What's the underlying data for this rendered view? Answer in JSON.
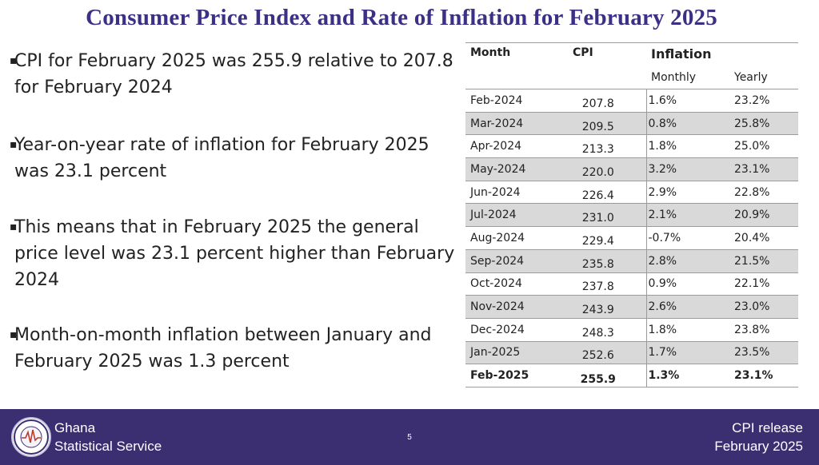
{
  "title": "Consumer Price Index and Rate of Inflation for February 2025",
  "bullets": [
    "CPI for February 2025 was 255.9 relative to 207.8 for February 2024",
    "Year-on-year rate of inflation for February 2025 was 23.1 percent",
    "This means that in February 2025 the general price level was 23.1 percent higher than February 2024",
    "Month-on-month inflation between January and February 2025 was 1.3 percent"
  ],
  "bullet_symbol": "▪",
  "table": {
    "headers": {
      "month": "Month",
      "cpi": "CPI",
      "inflation": "Inflation",
      "monthly": "Monthly",
      "yearly": "Yearly"
    },
    "rows": [
      {
        "month": "Feb-2024",
        "cpi": "207.8",
        "monthly": "1.6%",
        "yearly": "23.2%"
      },
      {
        "month": "Mar-2024",
        "cpi": "209.5",
        "monthly": "0.8%",
        "yearly": "25.8%"
      },
      {
        "month": "Apr-2024",
        "cpi": "213.3",
        "monthly": "1.8%",
        "yearly": "25.0%"
      },
      {
        "month": "May-2024",
        "cpi": "220.0",
        "monthly": "3.2%",
        "yearly": "23.1%"
      },
      {
        "month": "Jun-2024",
        "cpi": "226.4",
        "monthly": "2.9%",
        "yearly": "22.8%"
      },
      {
        "month": "Jul-2024",
        "cpi": "231.0",
        "monthly": "2.1%",
        "yearly": "20.9%"
      },
      {
        "month": "Aug-2024",
        "cpi": "229.4",
        "monthly": "-0.7%",
        "yearly": "20.4%"
      },
      {
        "month": "Sep-2024",
        "cpi": "235.8",
        "monthly": "2.8%",
        "yearly": "21.5%"
      },
      {
        "month": "Oct-2024",
        "cpi": "237.8",
        "monthly": "0.9%",
        "yearly": "22.1%"
      },
      {
        "month": "Nov-2024",
        "cpi": "243.9",
        "monthly": "2.6%",
        "yearly": "23.0%"
      },
      {
        "month": "Dec-2024",
        "cpi": "248.3",
        "monthly": "1.8%",
        "yearly": "23.8%"
      },
      {
        "month": "Jan-2025",
        "cpi": "252.6",
        "monthly": "1.7%",
        "yearly": "23.5%"
      },
      {
        "month": "Feb-2025",
        "cpi": "255.9",
        "monthly": "1.3%",
        "yearly": "23.1%",
        "bold": true
      }
    ]
  },
  "footer": {
    "org_line1": "Ghana",
    "org_line2": "Statistical Service",
    "page": "5",
    "release_line1": "CPI release",
    "release_line2": "February  2025",
    "logo_text_top": "STATISTICAL SERVICE",
    "logo_text_bottom": "GHANA"
  },
  "colors": {
    "title": "#3b2f86",
    "footer_bg": "#3b2f72",
    "row_shade": "#d9d9d9",
    "logo_line": "#c0392b"
  }
}
